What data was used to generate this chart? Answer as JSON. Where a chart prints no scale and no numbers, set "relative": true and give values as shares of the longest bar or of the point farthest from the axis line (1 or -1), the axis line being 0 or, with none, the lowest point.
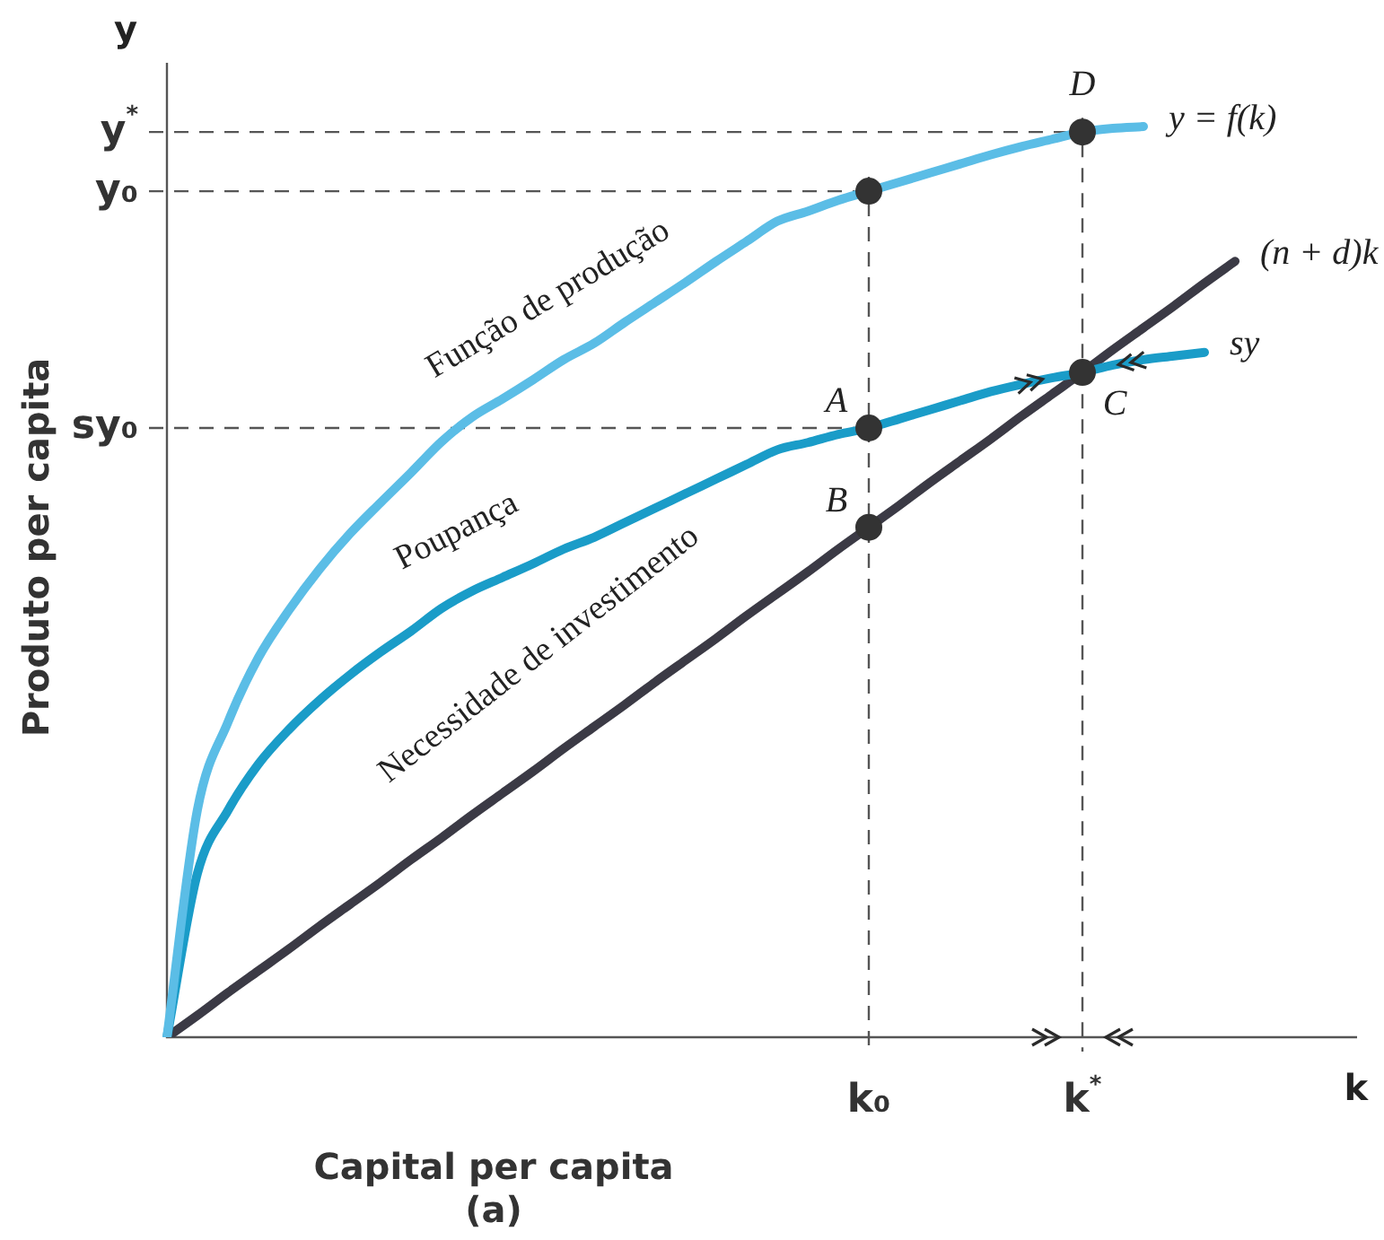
{
  "chart_data": {
    "type": "line",
    "relative": true,
    "xlabel": "Capital per capita (a)",
    "ylabel": "Produto per capita",
    "categories": [
      null,
      null,
      null,
      null,
      null,
      null,
      null,
      null,
      null,
      null,
      null,
      null,
      null,
      null,
      null,
      null,
      null,
      null,
      null,
      null,
      null,
      null,
      null,
      "k₀",
      null,
      null,
      null,
      null,
      null,
      null,
      "k$^{*}$",
      null,
      null,
      null,
      null,
      null,
      null,
      null,
      null,
      null
    ],
    "series": [
      {
        "name": "y = f(k)",
        "color": "#5bbde6",
        "values": [
          0,
          0.25,
          0.346,
          0.417,
          0.469,
          0.514,
          0.553,
          0.587,
          0.62,
          0.654,
          0.681,
          0.701,
          0.722,
          0.744,
          0.762,
          0.785,
          0.807,
          0.829,
          0.852,
          0.874,
          0.896,
          0.907,
          0.919,
          0.929,
          0.939,
          0.949,
          0.959,
          0.969,
          0.978,
          0.986,
          0.994,
          0.998,
          1,
          null,
          null,
          null,
          null,
          null,
          null,
          null
        ]
      },
      {
        "name": "sy",
        "color": "#1a9cc8",
        "values": [
          0,
          0.18,
          0.249,
          0.3,
          0.338,
          0.37,
          0.398,
          0.423,
          0.446,
          0.471,
          0.49,
          0.505,
          0.52,
          0.536,
          0.549,
          0.565,
          0.581,
          0.597,
          0.613,
          0.629,
          0.645,
          0.653,
          0.662,
          0.669,
          0.679,
          0.689,
          0.699,
          0.709,
          0.717,
          0.724,
          0.73,
          0.738,
          0.744,
          0.748,
          0.752,
          null,
          null,
          null,
          null,
          null
        ]
      },
      {
        "name": "(n + d)k",
        "color": "#3b3a45",
        "values": [
          0,
          0.024,
          0.049,
          0.073,
          0.097,
          0.122,
          0.146,
          0.17,
          0.195,
          0.219,
          0.244,
          0.268,
          0.292,
          0.317,
          0.341,
          0.365,
          0.39,
          0.414,
          0.438,
          0.463,
          0.487,
          0.511,
          0.536,
          0.56,
          0.584,
          0.609,
          0.633,
          0.657,
          0.682,
          0.706,
          0.73,
          0.755,
          0.779,
          0.803,
          0.828,
          0.852,
          null,
          null,
          null,
          null
        ]
      },
      {
        "type": "scatter",
        "marker": "circle",
        "color": "#333333",
        "x": [
          "k₀",
          "k₀",
          "k₀",
          "k$^{*}$",
          "k$^{*}$"
        ],
        "values": [
          0.929,
          0.669,
          0.56,
          0.994,
          0.73
        ]
      }
    ],
    "ref_lines": [
      {
        "axis": "y",
        "value": 0.994,
        "label": "y$^{*}$",
        "color": "#555555",
        "line_style": "dashed"
      },
      {
        "axis": "y",
        "value": 0.929,
        "label": "y₀",
        "color": "#555555",
        "line_style": "dashed"
      },
      {
        "axis": "y",
        "value": 0.669,
        "label": "sy₀",
        "color": "#555555",
        "line_style": "dashed"
      },
      {
        "axis": "x",
        "value": "k₀",
        "color": "#555555",
        "line_style": "dashed"
      },
      {
        "axis": "x",
        "value": "k$^{*}$",
        "color": "#555555",
        "line_style": "dashed"
      }
    ],
    "annotations": [
      "Função de produção",
      "Poupança",
      "Necessidade de investimento",
      "y",
      "k",
      {
        "text": "D",
        "x": "k$^{*}$",
        "y": 0.994
      },
      {
        "text": "A",
        "x": "k₀",
        "y": 0.669
      },
      {
        "text": "B",
        "x": "k₀",
        "y": 0.56
      },
      {
        "text": "C",
        "x": "k$^{*}$",
        "y": 0.73
      }
    ],
    "marker": "none",
    "legend": false
  }
}
